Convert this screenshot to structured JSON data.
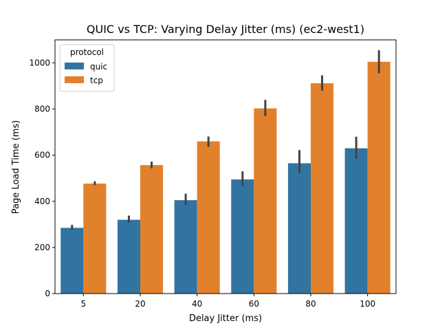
{
  "chart_data": {
    "type": "bar",
    "title": "QUIC vs TCP: Varying Delay Jitter (ms) (ec2-west1)",
    "xlabel": "Delay Jitter (ms)",
    "ylabel": "Page Load Time (ms)",
    "categories": [
      "5",
      "20",
      "40",
      "60",
      "80",
      "100"
    ],
    "ylim": [
      0,
      1100
    ],
    "yticks": [
      0,
      200,
      400,
      600,
      800,
      1000
    ],
    "grid": false,
    "legend": {
      "title": "protocol",
      "placement": "top-left"
    },
    "series": [
      {
        "name": "quic",
        "color": "#3274a1",
        "values": [
          285,
          320,
          405,
          495,
          565,
          630
        ],
        "err_low": [
          276,
          308,
          383,
          466,
          524,
          585
        ],
        "err_high": [
          298,
          338,
          433,
          530,
          622,
          680
        ]
      },
      {
        "name": "tcp",
        "color": "#e1812c",
        "values": [
          477,
          557,
          660,
          803,
          912,
          1005
        ],
        "err_low": [
          470,
          543,
          636,
          770,
          880,
          955
        ],
        "err_high": [
          487,
          572,
          681,
          840,
          946,
          1055
        ]
      }
    ],
    "errorbar_color": "#424242"
  }
}
